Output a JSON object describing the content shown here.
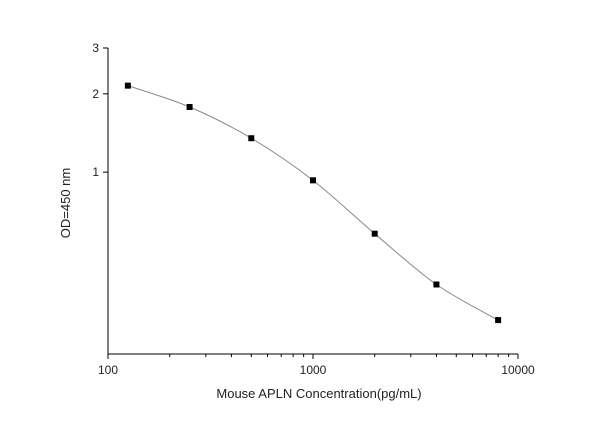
{
  "chart_data": {
    "type": "line",
    "xlabel": "Mouse APLN  Concentration(pg/mL)",
    "ylabel": "OD=450 nm",
    "x_scale": "log",
    "y_scale": "log",
    "xlim": [
      100,
      10000
    ],
    "ylim": [
      0.2,
      3
    ],
    "x_ticks": [
      {
        "value": 100,
        "label": "100"
      },
      {
        "value": 1000,
        "label": "1000"
      },
      {
        "value": 10000,
        "label": "10000"
      }
    ],
    "y_ticks": [
      {
        "value": 1,
        "label": "1"
      },
      {
        "value": 2,
        "label": "2"
      },
      {
        "value": 3,
        "label": "3"
      }
    ],
    "grid": false,
    "series": [
      {
        "x": [
          125,
          250,
          500,
          1000,
          2000,
          4000,
          8000
        ],
        "y": [
          2.15,
          1.78,
          1.35,
          0.93,
          0.58,
          0.37,
          0.27
        ],
        "marker": "square",
        "color": "#000000",
        "line_color": "#888888"
      }
    ]
  }
}
